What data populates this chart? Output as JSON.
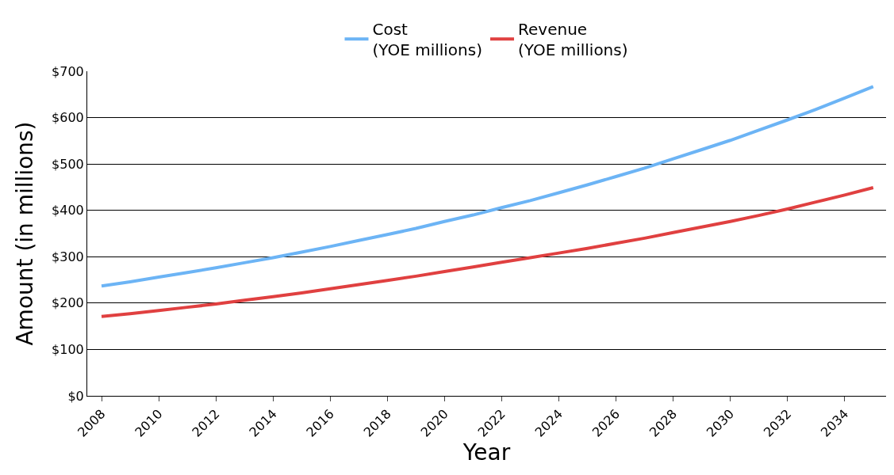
{
  "chart_data": {
    "type": "line",
    "xlabel": "Year",
    "ylabel": "Amount (in millions)",
    "categories": [
      "2008",
      null,
      "2010",
      null,
      "2012",
      null,
      "2014",
      null,
      "2016",
      null,
      "2018",
      null,
      "2020",
      null,
      "2022",
      null,
      "2024",
      null,
      "2026",
      null,
      "2028",
      null,
      "2030",
      null,
      "2032",
      null,
      "2034",
      null
    ],
    "series": [
      {
        "name": "Cost\n(YOE millions)",
        "color": "#6cb4f5",
        "values": [
          237,
          246,
          256,
          266,
          276,
          287,
          298,
          310,
          322,
          335,
          348,
          361,
          376,
          390,
          406,
          421,
          438,
          455,
          473,
          491,
          511,
          531,
          551,
          573,
          595,
          618,
          642,
          667
        ]
      },
      {
        "name": "Revenue\n(YOE millions)",
        "color": "#e04040",
        "values": [
          171,
          177,
          184,
          191,
          198,
          206,
          214,
          222,
          231,
          240,
          249,
          258,
          268,
          278,
          288,
          298,
          308,
          318,
          329,
          340,
          352,
          364,
          376,
          389,
          403,
          418,
          433,
          449
        ]
      }
    ],
    "ylim": [
      0,
      700
    ],
    "yticks": [
      {
        "value": 0,
        "label": "$0"
      },
      {
        "value": 100,
        "label": "$100"
      },
      {
        "value": 200,
        "label": "$200"
      },
      {
        "value": 300,
        "label": "$300"
      },
      {
        "value": 400,
        "label": "$400"
      },
      {
        "value": 500,
        "label": "$500"
      },
      {
        "value": 600,
        "label": "$600"
      },
      {
        "value": 700,
        "label": "$700"
      }
    ],
    "grid": "y",
    "legend": "top",
    "marker": "none",
    "line_style": "solid"
  }
}
